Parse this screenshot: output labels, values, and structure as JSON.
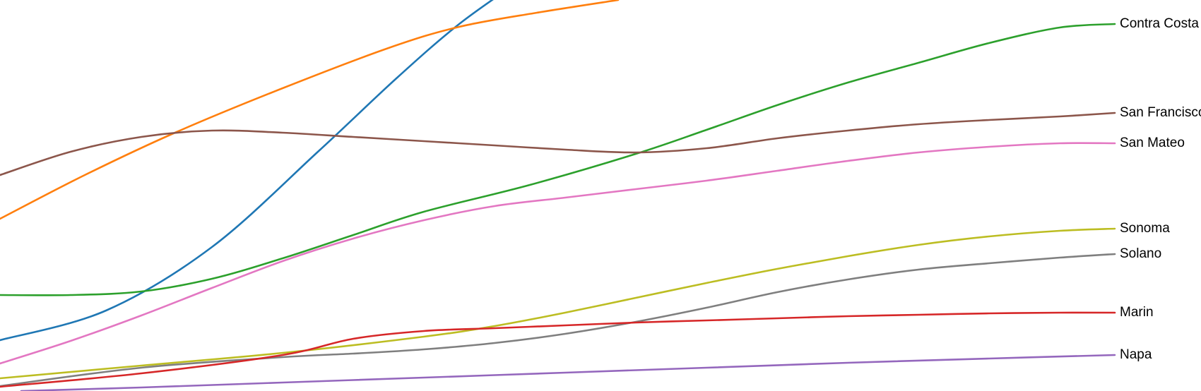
{
  "chart_data": {
    "type": "line",
    "title": "",
    "xlabel": "",
    "ylabel": "",
    "grid": false,
    "legend": "labels at line ends (right)",
    "series": [
      {
        "name": "",
        "color": "#1f77b4",
        "points": [
          [
            0,
            482
          ],
          [
            150,
            440
          ],
          [
            300,
            350
          ],
          [
            450,
            215
          ],
          [
            560,
            112
          ],
          [
            650,
            34
          ],
          [
            740,
            -30
          ]
        ]
      },
      {
        "name": "",
        "color": "#ff7f0e",
        "points": [
          [
            0,
            310
          ],
          [
            120,
            248
          ],
          [
            250,
            187
          ],
          [
            400,
            125
          ],
          [
            550,
            68
          ],
          [
            650,
            38
          ],
          [
            760,
            18
          ],
          [
            875,
            0
          ]
        ]
      },
      {
        "name": "Contra Costa",
        "color": "#2ca02c",
        "points": [
          [
            0,
            418
          ],
          [
            100,
            418
          ],
          [
            200,
            413
          ],
          [
            300,
            395
          ],
          [
            400,
            366
          ],
          [
            500,
            333
          ],
          [
            600,
            300
          ],
          [
            750,
            262
          ],
          [
            900,
            218
          ],
          [
            1000,
            184
          ],
          [
            1100,
            149
          ],
          [
            1200,
            117
          ],
          [
            1300,
            89
          ],
          [
            1400,
            61
          ],
          [
            1500,
            39
          ],
          [
            1578,
            34
          ]
        ]
      },
      {
        "name": "San Francisco",
        "color": "#8c564b",
        "points": [
          [
            0,
            248
          ],
          [
            100,
            215
          ],
          [
            200,
            194
          ],
          [
            300,
            185
          ],
          [
            400,
            188
          ],
          [
            500,
            194
          ],
          [
            600,
            200
          ],
          [
            700,
            206
          ],
          [
            800,
            212
          ],
          [
            900,
            216
          ],
          [
            1000,
            210
          ],
          [
            1100,
            196
          ],
          [
            1200,
            185
          ],
          [
            1300,
            176
          ],
          [
            1400,
            170
          ],
          [
            1500,
            165
          ],
          [
            1578,
            160
          ]
        ]
      },
      {
        "name": "San Mateo",
        "color": "#e377c2",
        "points": [
          [
            0,
            515
          ],
          [
            100,
            483
          ],
          [
            200,
            447
          ],
          [
            300,
            408
          ],
          [
            400,
            370
          ],
          [
            500,
            338
          ],
          [
            600,
            312
          ],
          [
            700,
            292
          ],
          [
            800,
            280
          ],
          [
            900,
            268
          ],
          [
            1000,
            256
          ],
          [
            1100,
            242
          ],
          [
            1200,
            228
          ],
          [
            1300,
            216
          ],
          [
            1400,
            208
          ],
          [
            1500,
            203
          ],
          [
            1578,
            203
          ]
        ]
      },
      {
        "name": "Sonoma",
        "color": "#bcbd22",
        "points": [
          [
            0,
            536
          ],
          [
            200,
            518
          ],
          [
            400,
            500
          ],
          [
            600,
            477
          ],
          [
            700,
            462
          ],
          [
            800,
            443
          ],
          [
            900,
            422
          ],
          [
            1000,
            401
          ],
          [
            1100,
            381
          ],
          [
            1200,
            363
          ],
          [
            1300,
            347
          ],
          [
            1400,
            335
          ],
          [
            1500,
            327
          ],
          [
            1578,
            324
          ]
        ]
      },
      {
        "name": "Solano",
        "color": "#7f7f7f",
        "points": [
          [
            0,
            547
          ],
          [
            200,
            521
          ],
          [
            400,
            506
          ],
          [
            500,
            501
          ],
          [
            600,
            495
          ],
          [
            700,
            486
          ],
          [
            800,
            473
          ],
          [
            900,
            456
          ],
          [
            1000,
            436
          ],
          [
            1100,
            414
          ],
          [
            1200,
            396
          ],
          [
            1300,
            382
          ],
          [
            1400,
            373
          ],
          [
            1500,
            365
          ],
          [
            1578,
            360
          ]
        ]
      },
      {
        "name": "Marin",
        "color": "#d62728",
        "points": [
          [
            0,
            548
          ],
          [
            200,
            529
          ],
          [
            400,
            503
          ],
          [
            500,
            480
          ],
          [
            600,
            469
          ],
          [
            700,
            465
          ],
          [
            800,
            461
          ],
          [
            900,
            457
          ],
          [
            1000,
            454
          ],
          [
            1100,
            451
          ],
          [
            1200,
            448
          ],
          [
            1300,
            446
          ],
          [
            1400,
            444
          ],
          [
            1500,
            443
          ],
          [
            1578,
            443
          ]
        ]
      },
      {
        "name": "Napa",
        "color": "#9467bd",
        "points": [
          [
            30,
            554
          ],
          [
            200,
            549
          ],
          [
            400,
            542
          ],
          [
            600,
            535
          ],
          [
            800,
            528
          ],
          [
            1000,
            521
          ],
          [
            1200,
            514
          ],
          [
            1400,
            508
          ],
          [
            1578,
            503
          ]
        ]
      }
    ]
  }
}
